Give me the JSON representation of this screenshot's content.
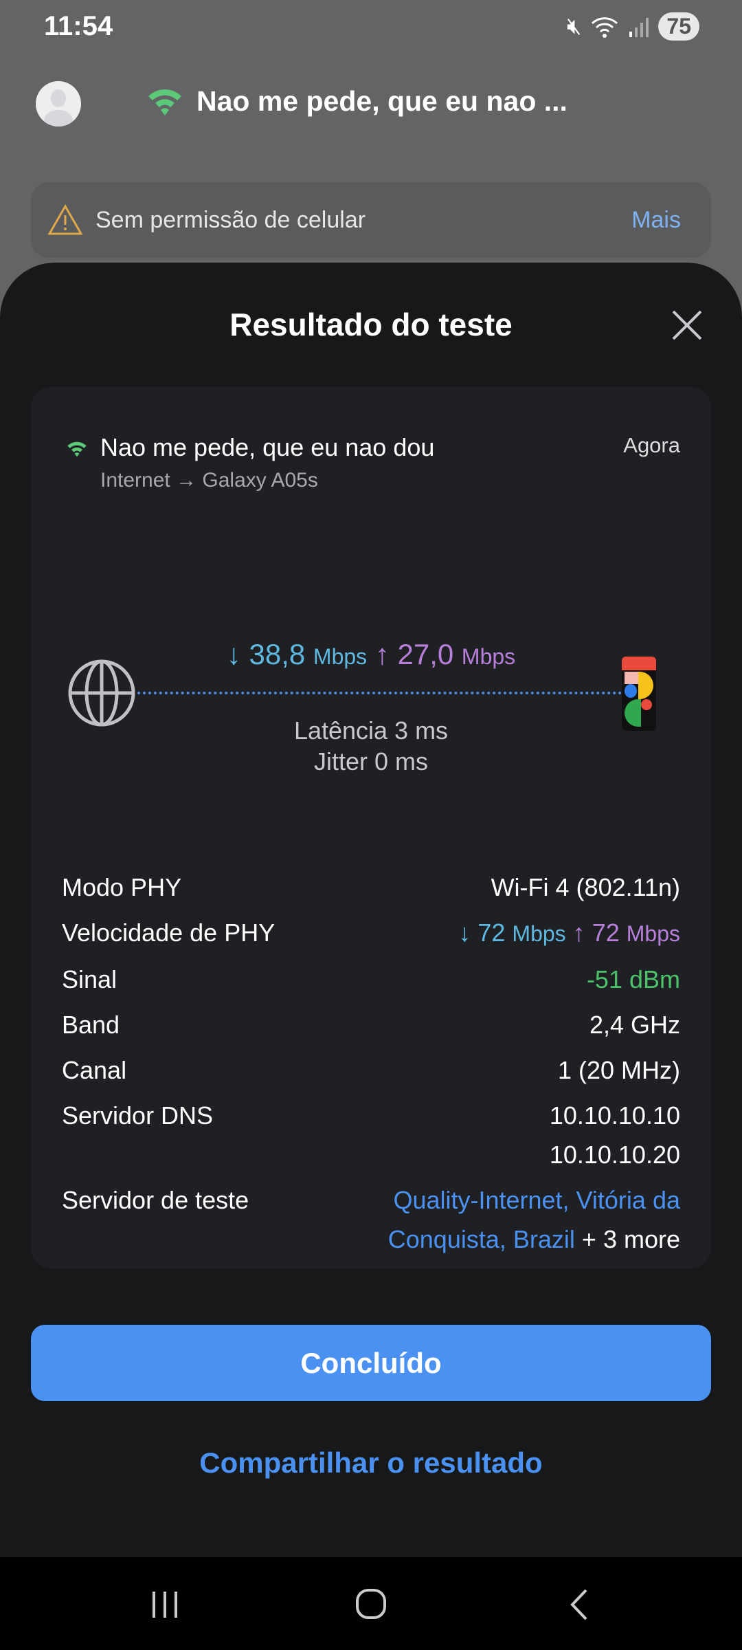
{
  "status_bar": {
    "time": "11:54",
    "battery": "75",
    "icons": [
      "mute-icon",
      "wifi-icon",
      "signal-icon"
    ]
  },
  "header": {
    "network_name": "Nao me pede, que eu nao ...",
    "wifi_color": "#5cc878"
  },
  "banner": {
    "text": "Sem permissão de celular",
    "action": "Mais"
  },
  "sheet": {
    "title": "Resultado do teste"
  },
  "result": {
    "network": "Nao me pede, que eu nao dou",
    "path": "Internet → Galaxy A05s",
    "time": "Agora",
    "download": "38,8",
    "upload": "27,0",
    "unit": "Mbps",
    "download_arrow": "↓",
    "upload_arrow": "↑",
    "latency": "Latência 3 ms",
    "jitter": "Jitter 0 ms"
  },
  "details": {
    "phy_mode": {
      "label": "Modo PHY",
      "value": "Wi-Fi 4 (802.11n)"
    },
    "phy_speed": {
      "label": "Velocidade de PHY",
      "down": "72",
      "up": "72",
      "unit": "Mbps"
    },
    "signal": {
      "label": "Sinal",
      "value": "-51 dBm",
      "color": "#4cc36a"
    },
    "band": {
      "label": "Band",
      "value": "2,4 GHz"
    },
    "channel": {
      "label": "Canal",
      "value": "1 (20 MHz)"
    },
    "dns": {
      "label": "Servidor DNS",
      "values": [
        "10.10.10.10",
        "10.10.10.20"
      ]
    },
    "test_server": {
      "label": "Servidor de teste",
      "line1": "Quality-Internet, Vitória da",
      "line2": "Conquista, Brazil",
      "more": "+ 3 more"
    }
  },
  "buttons": {
    "done": "Concluído",
    "share": "Compartilhar o resultado"
  },
  "colors": {
    "accent": "#4a91f2",
    "download": "#5fb8e0",
    "upload": "#b87fdb"
  }
}
